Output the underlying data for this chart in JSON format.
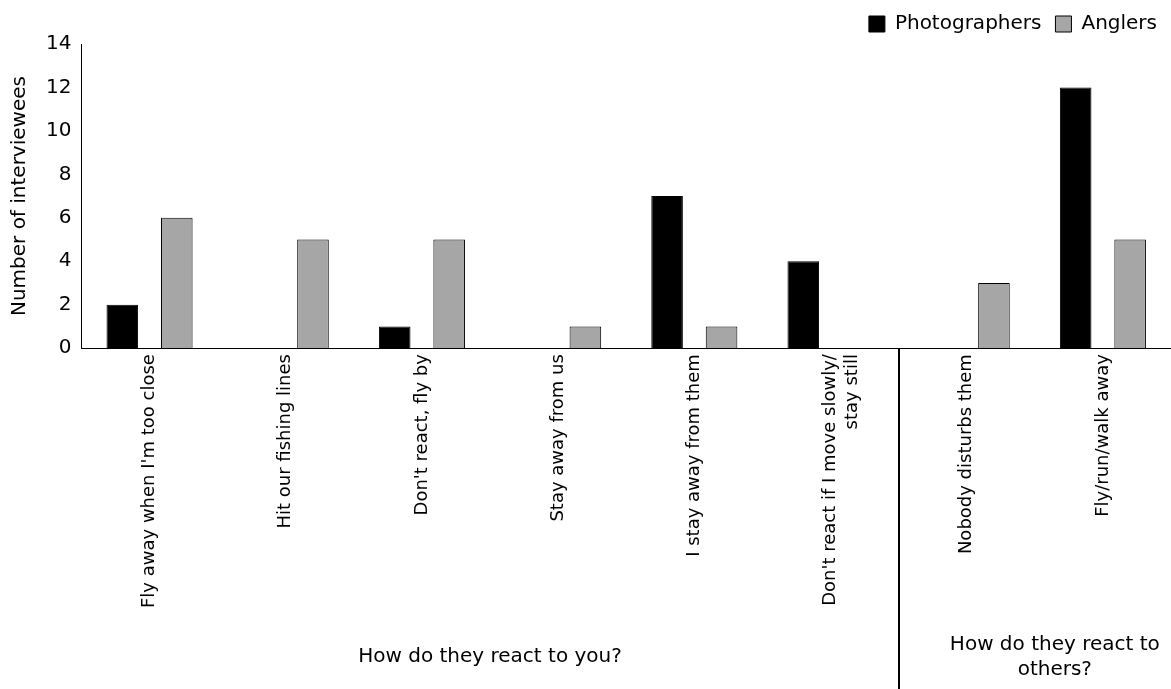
{
  "chart_data": {
    "type": "bar",
    "ylabel": "Number of interviewees",
    "categories": [
      "Fly away when I'm too close",
      "Hit our fishing lines",
      "Don't react, fly by",
      "Stay away from us",
      "I stay away from them",
      "Don't react if I move slowly/ stay still",
      "Nobody disturbs them",
      "Fly/run/walk away"
    ],
    "series": [
      {
        "name": "Photographers",
        "color": "#000000",
        "values": [
          2,
          0,
          1,
          0,
          7,
          4,
          0,
          12
        ]
      },
      {
        "name": "Anglers",
        "color": "#a6a6a6",
        "values": [
          6,
          5,
          5,
          1,
          1,
          0,
          3,
          5
        ]
      }
    ],
    "ylim": [
      0,
      14
    ],
    "yticks": [
      0,
      2,
      4,
      6,
      8,
      10,
      12,
      14
    ],
    "grid": false,
    "legend": "top right",
    "annotations": [
      "How do they react to you?",
      "How do they react to others?"
    ]
  }
}
